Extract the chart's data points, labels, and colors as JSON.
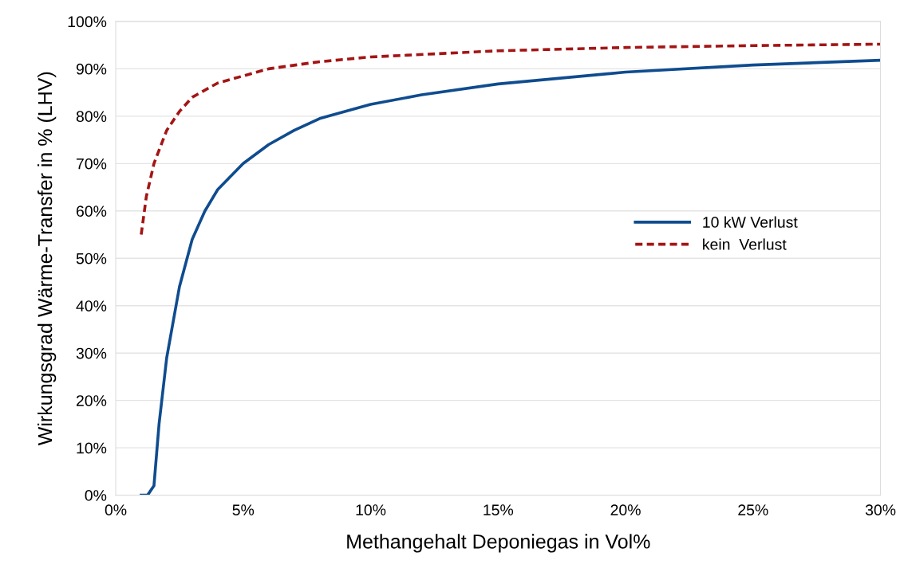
{
  "chart_data": {
    "type": "line",
    "xlabel": "Methangehalt Deponiegas in Vol%",
    "ylabel": "Wirkungsgrad Wärme-Transfer in % (LHV)",
    "xlim": [
      0,
      30
    ],
    "ylim": [
      0,
      100
    ],
    "xticks": [
      {
        "value": 0,
        "label": "0%"
      },
      {
        "value": 5,
        "label": "5%"
      },
      {
        "value": 10,
        "label": "10%"
      },
      {
        "value": 15,
        "label": "15%"
      },
      {
        "value": 20,
        "label": "20%"
      },
      {
        "value": 25,
        "label": "25%"
      },
      {
        "value": 30,
        "label": "30%"
      }
    ],
    "yticks": [
      {
        "value": 0,
        "label": "0%"
      },
      {
        "value": 10,
        "label": "10%"
      },
      {
        "value": 20,
        "label": "20%"
      },
      {
        "value": 30,
        "label": "30%"
      },
      {
        "value": 40,
        "label": "40%"
      },
      {
        "value": 50,
        "label": "50%"
      },
      {
        "value": 60,
        "label": "60%"
      },
      {
        "value": 70,
        "label": "70%"
      },
      {
        "value": 80,
        "label": "80%"
      },
      {
        "value": 90,
        "label": "90%"
      },
      {
        "value": 100,
        "label": "100%"
      }
    ],
    "grid": "y",
    "legend": "center right",
    "marker": "none",
    "series": [
      {
        "name": "10 kW Verlust",
        "color": "#0f4c8f",
        "line_style": "solid",
        "x": [
          1.0,
          1.25,
          1.5,
          1.7,
          2.0,
          2.5,
          3,
          3.5,
          4,
          5,
          6,
          7,
          8,
          10,
          12,
          15,
          20,
          25,
          30
        ],
        "values": [
          0,
          0,
          2,
          15,
          29,
          44,
          54,
          60,
          64.5,
          70,
          74,
          77,
          79.5,
          82.5,
          84.5,
          86.8,
          89.3,
          90.8,
          91.8
        ]
      },
      {
        "name": "kein  Verlust",
        "color": "#a31515",
        "line_style": "dashed",
        "x": [
          1.0,
          1.2,
          1.5,
          2,
          2.5,
          3,
          4,
          5,
          6,
          8,
          10,
          15,
          20,
          25,
          30
        ],
        "values": [
          55,
          63,
          70,
          77,
          81,
          84,
          87,
          88.5,
          90,
          91.5,
          92.5,
          93.8,
          94.5,
          94.9,
          95.2
        ]
      }
    ]
  }
}
